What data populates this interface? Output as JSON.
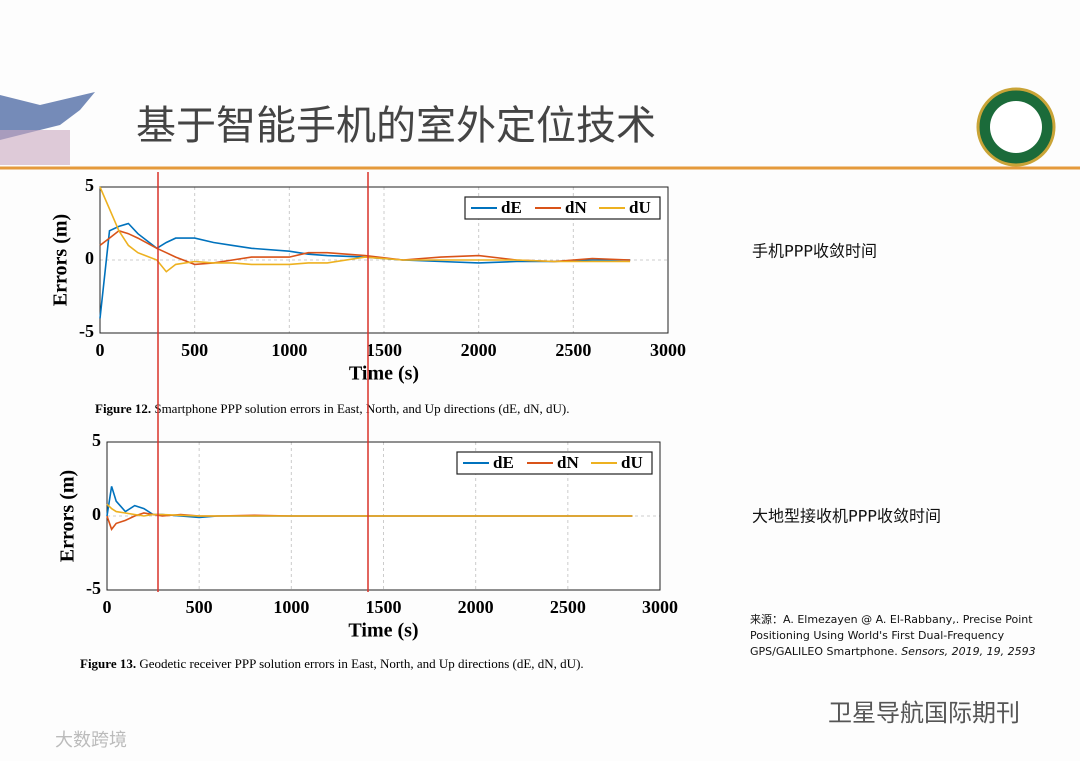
{
  "slide": {
    "title": "基于智能手机的室外定位技术",
    "note_phone": "手机PPP收敛时间",
    "note_geodetic": "大地型接收机PPP收敛时间",
    "source": [
      "来源：A. Elmezayen  @ A. El-Rabbany,. Precise Point",
      "Positioning Using World's First Dual-Frequency",
      "GPS/GALILEO Smartphone."
    ],
    "source_journal": "Sensors, 2019, 19, 2593",
    "watermark": "卫星导航国际期刊",
    "watermark2": "大数跨境"
  },
  "chart_data": [
    {
      "type": "line",
      "caption_label": "Figure 12.",
      "caption": "Smartphone PPP solution errors in East, North, and Up directions (dE, dN, dU).",
      "x_label": "Time (s)",
      "y_label": "Errors (m)",
      "xlim": [
        0,
        3000
      ],
      "ylim": [
        -5,
        5
      ],
      "xticks": [
        0,
        500,
        1000,
        1500,
        2000,
        2500,
        3000
      ],
      "yticks": [
        -5,
        0,
        5
      ],
      "grid": true,
      "legend": "upper right",
      "x": [
        0,
        50,
        100,
        150,
        200,
        300,
        350,
        400,
        500,
        600,
        700,
        800,
        1000,
        1100,
        1200,
        1400,
        1600,
        1800,
        2000,
        2200,
        2400,
        2600,
        2800
      ],
      "series": [
        {
          "name": "dE",
          "color": "#0072bd",
          "values": [
            -4,
            2,
            2.3,
            2.5,
            1.8,
            0.8,
            1.2,
            1.5,
            1.5,
            1.2,
            1.0,
            0.8,
            0.6,
            0.4,
            0.3,
            0.2,
            0,
            -0.1,
            -0.2,
            -0.1,
            -0.1,
            0,
            0
          ]
        },
        {
          "name": "dN",
          "color": "#d95319",
          "values": [
            1,
            1.5,
            2,
            1.8,
            1.5,
            0.8,
            0.5,
            0.2,
            -0.3,
            -0.2,
            0,
            0.2,
            0.2,
            0.5,
            0.5,
            0.3,
            0,
            0.2,
            0.3,
            0,
            -0.1,
            0.1,
            0
          ]
        },
        {
          "name": "dU",
          "color": "#edb120",
          "values": [
            5,
            3.5,
            2,
            1,
            0.5,
            0,
            -0.8,
            -0.3,
            -0.1,
            -0.2,
            -0.2,
            -0.3,
            -0.3,
            -0.2,
            -0.2,
            0.2,
            0,
            0,
            0,
            0,
            -0.1,
            -0.1,
            -0.1
          ]
        }
      ]
    },
    {
      "type": "line",
      "caption_label": "Figure 13.",
      "caption": "Geodetic receiver PPP solution errors in East, North, and Up directions (dE, dN, dU).",
      "x_label": "Time (s)",
      "y_label": "Errors (m)",
      "xlim": [
        0,
        3000
      ],
      "ylim": [
        -5,
        5
      ],
      "xticks": [
        0,
        500,
        1000,
        1500,
        2000,
        2500,
        3000
      ],
      "yticks": [
        -5,
        0,
        5
      ],
      "grid": true,
      "legend": "upper right",
      "x": [
        0,
        25,
        50,
        100,
        150,
        200,
        250,
        300,
        400,
        500,
        600,
        800,
        1000,
        1500,
        2000,
        2500,
        2850
      ],
      "series": [
        {
          "name": "dE",
          "color": "#0072bd",
          "values": [
            0,
            2,
            1,
            0.3,
            0.7,
            0.5,
            0.1,
            0.1,
            0,
            -0.1,
            0,
            0,
            0,
            0,
            0,
            0,
            0
          ]
        },
        {
          "name": "dN",
          "color": "#d95319",
          "values": [
            0,
            -0.9,
            -0.5,
            -0.3,
            0,
            0.2,
            0.1,
            0,
            0.1,
            0,
            0,
            0.05,
            0,
            0,
            0,
            0,
            0
          ]
        },
        {
          "name": "dU",
          "color": "#edb120",
          "values": [
            0.8,
            0.5,
            0.3,
            0.2,
            0.1,
            0,
            0.1,
            0.1,
            0.05,
            0,
            0,
            0,
            0,
            0,
            0,
            0,
            0
          ]
        }
      ]
    }
  ]
}
